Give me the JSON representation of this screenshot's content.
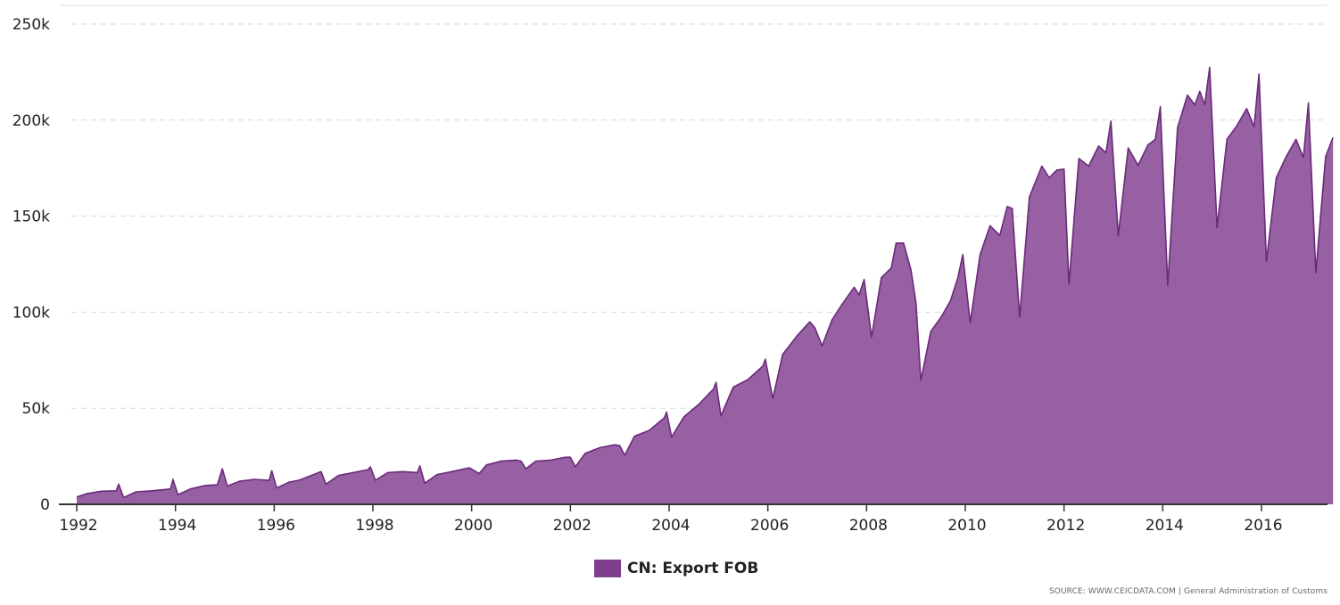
{
  "chart_data": {
    "type": "area",
    "title": "",
    "xlabel": "",
    "ylabel": "",
    "y_tick_labels": [
      "0",
      "50k",
      "100k",
      "150k",
      "200k",
      "250k"
    ],
    "y_ticks": [
      0,
      50000,
      100000,
      150000,
      200000,
      250000
    ],
    "ylim": [
      0,
      250000
    ],
    "x_tick_labels": [
      "1992",
      "1994",
      "1996",
      "1998",
      "2000",
      "2002",
      "2004",
      "2006",
      "2008",
      "2010",
      "2012",
      "2014",
      "2016"
    ],
    "x_ticks": [
      1992,
      1994,
      1996,
      1998,
      2000,
      2002,
      2004,
      2006,
      2008,
      2010,
      2012,
      2014,
      2016
    ],
    "xlim": [
      1992,
      2017.5
    ],
    "grid": true,
    "legend_position": "bottom-center",
    "series": [
      {
        "name": "CN: Export FOB",
        "color": "#9660a2",
        "line_color": "#6a2a79",
        "points": [
          [
            1992.0,
            3800
          ],
          [
            1992.2,
            5500
          ],
          [
            1992.5,
            6800
          ],
          [
            1992.8,
            7000
          ],
          [
            1992.85,
            10500
          ],
          [
            1992.95,
            3500
          ],
          [
            1993.2,
            6500
          ],
          [
            1993.5,
            7000
          ],
          [
            1993.9,
            8000
          ],
          [
            1993.95,
            13000
          ],
          [
            1994.05,
            5000
          ],
          [
            1994.3,
            8000
          ],
          [
            1994.6,
            9800
          ],
          [
            1994.85,
            10200
          ],
          [
            1994.95,
            18500
          ],
          [
            1995.05,
            9500
          ],
          [
            1995.3,
            12000
          ],
          [
            1995.6,
            13000
          ],
          [
            1995.9,
            12500
          ],
          [
            1995.95,
            17500
          ],
          [
            1996.05,
            8500
          ],
          [
            1996.3,
            11500
          ],
          [
            1996.5,
            12500
          ],
          [
            1996.8,
            15500
          ],
          [
            1996.95,
            17000
          ],
          [
            1997.05,
            10500
          ],
          [
            1997.3,
            15000
          ],
          [
            1997.6,
            16500
          ],
          [
            1997.9,
            18000
          ],
          [
            1997.95,
            19500
          ],
          [
            1998.05,
            12500
          ],
          [
            1998.3,
            16500
          ],
          [
            1998.6,
            17000
          ],
          [
            1998.9,
            16500
          ],
          [
            1998.95,
            20000
          ],
          [
            1999.05,
            11000
          ],
          [
            1999.3,
            15500
          ],
          [
            1999.6,
            17000
          ],
          [
            1999.95,
            19000
          ],
          [
            2000.15,
            16000
          ],
          [
            2000.3,
            20500
          ],
          [
            2000.6,
            22500
          ],
          [
            2000.9,
            23000
          ],
          [
            2001.0,
            22500
          ],
          [
            2001.1,
            18500
          ],
          [
            2001.3,
            22500
          ],
          [
            2001.6,
            23000
          ],
          [
            2001.9,
            24500
          ],
          [
            2002.0,
            24500
          ],
          [
            2002.1,
            19500
          ],
          [
            2002.3,
            26500
          ],
          [
            2002.6,
            29500
          ],
          [
            2002.9,
            31000
          ],
          [
            2003.0,
            30500
          ],
          [
            2003.1,
            25500
          ],
          [
            2003.3,
            35500
          ],
          [
            2003.6,
            38500
          ],
          [
            2003.9,
            45000
          ],
          [
            2003.95,
            48000
          ],
          [
            2004.05,
            35000
          ],
          [
            2004.3,
            45500
          ],
          [
            2004.6,
            52000
          ],
          [
            2004.9,
            60000
          ],
          [
            2004.95,
            63500
          ],
          [
            2005.05,
            46000
          ],
          [
            2005.3,
            61000
          ],
          [
            2005.6,
            65000
          ],
          [
            2005.9,
            72000
          ],
          [
            2005.95,
            75500
          ],
          [
            2006.1,
            55000
          ],
          [
            2006.3,
            78000
          ],
          [
            2006.6,
            88000
          ],
          [
            2006.85,
            95000
          ],
          [
            2006.95,
            92000
          ],
          [
            2007.1,
            82500
          ],
          [
            2007.3,
            96000
          ],
          [
            2007.5,
            104000
          ],
          [
            2007.75,
            113000
          ],
          [
            2007.85,
            109000
          ],
          [
            2007.95,
            117000
          ],
          [
            2008.1,
            87000
          ],
          [
            2008.3,
            118000
          ],
          [
            2008.5,
            123000
          ],
          [
            2008.6,
            136000
          ],
          [
            2008.75,
            136000
          ],
          [
            2008.9,
            122000
          ],
          [
            2009.0,
            105000
          ],
          [
            2009.1,
            64500
          ],
          [
            2009.3,
            90000
          ],
          [
            2009.5,
            97000
          ],
          [
            2009.7,
            106000
          ],
          [
            2009.85,
            118000
          ],
          [
            2009.95,
            130000
          ],
          [
            2010.1,
            94500
          ],
          [
            2010.3,
            130000
          ],
          [
            2010.5,
            145000
          ],
          [
            2010.7,
            140000
          ],
          [
            2010.85,
            155000
          ],
          [
            2010.95,
            154000
          ],
          [
            2011.1,
            97500
          ],
          [
            2011.3,
            160000
          ],
          [
            2011.55,
            176000
          ],
          [
            2011.7,
            170000
          ],
          [
            2011.85,
            174000
          ],
          [
            2012.0,
            174500
          ],
          [
            2012.1,
            114500
          ],
          [
            2012.3,
            180000
          ],
          [
            2012.5,
            176000
          ],
          [
            2012.7,
            186500
          ],
          [
            2012.85,
            183000
          ],
          [
            2012.95,
            199500
          ],
          [
            2013.1,
            140000
          ],
          [
            2013.3,
            185500
          ],
          [
            2013.5,
            176500
          ],
          [
            2013.7,
            187000
          ],
          [
            2013.85,
            190000
          ],
          [
            2013.95,
            207000
          ],
          [
            2014.1,
            114000
          ],
          [
            2014.3,
            196000
          ],
          [
            2014.5,
            213000
          ],
          [
            2014.65,
            208000
          ],
          [
            2014.75,
            215000
          ],
          [
            2014.85,
            208000
          ],
          [
            2014.95,
            227500
          ],
          [
            2015.1,
            144000
          ],
          [
            2015.3,
            190000
          ],
          [
            2015.5,
            197000
          ],
          [
            2015.7,
            206000
          ],
          [
            2015.85,
            196500
          ],
          [
            2015.95,
            224000
          ],
          [
            2016.1,
            126500
          ],
          [
            2016.3,
            170000
          ],
          [
            2016.5,
            181000
          ],
          [
            2016.7,
            190000
          ],
          [
            2016.85,
            180500
          ],
          [
            2016.95,
            209000
          ],
          [
            2017.1,
            120500
          ],
          [
            2017.3,
            181000
          ],
          [
            2017.45,
            191000
          ]
        ]
      }
    ]
  },
  "legend": {
    "label": "CN: Export FOB",
    "color": "#7e3f8f"
  },
  "source": {
    "text": "SOURCE: WWW.CEICDATA.COM | General Administration of Customs"
  }
}
